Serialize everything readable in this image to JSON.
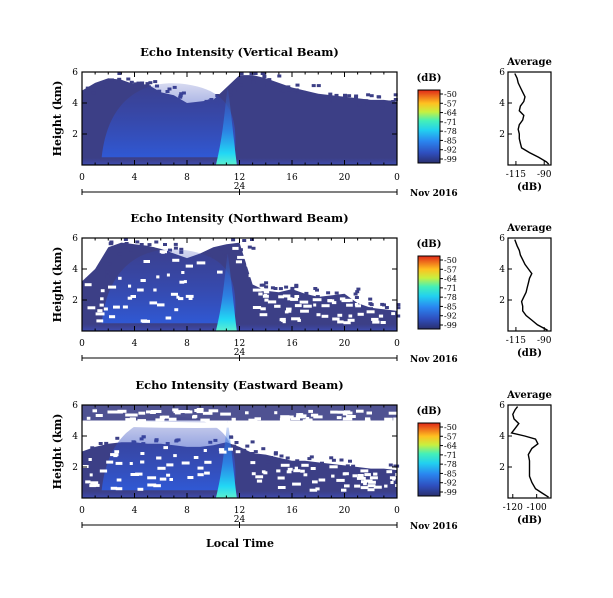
{
  "figure": {
    "xlabel": "Local Time",
    "date_label": "Nov 2016",
    "day_label": "24"
  },
  "chart_data": [
    {
      "type": "heatmap",
      "title": "Echo Intensity (Vertical Beam)",
      "ylabel": "Height (km)",
      "x_ticks": [
        "0",
        "4",
        "8",
        "12",
        "16",
        "20",
        "0"
      ],
      "y_ticks": [
        "2",
        "4",
        "6"
      ],
      "xlim": [
        0,
        24
      ],
      "ylim": [
        0,
        6
      ],
      "colorbar": {
        "unit": "(dB)",
        "ticks": [
          "-50",
          "-57",
          "-64",
          "-71",
          "-78",
          "-85",
          "-92",
          "-99"
        ]
      },
      "cloud_top_km": [
        4.8,
        5.3,
        5.6,
        5.5,
        5.2,
        5.2,
        4.7,
        4.5,
        4.0,
        4.1,
        4.2,
        5.0,
        5.8,
        5.8,
        5.6,
        5.3,
        5.0,
        4.8,
        4.6,
        4.5,
        4.4,
        4.3,
        4.2,
        4.2,
        4.1
      ],
      "average_profile": {
        "title": "Average",
        "xlabel": "(dB)",
        "x_ticks": [
          "-115",
          "-90"
        ],
        "y_ticks": [
          "2",
          "4",
          "6"
        ],
        "xlim": [
          -122,
          -84
        ],
        "points": [
          [
            -86,
            0.05
          ],
          [
            -88,
            0.2
          ],
          [
            -95,
            0.5
          ],
          [
            -103,
            0.8
          ],
          [
            -110,
            1.1
          ],
          [
            -111,
            1.4
          ],
          [
            -112,
            1.7
          ],
          [
            -112,
            2.0
          ],
          [
            -113,
            2.3
          ],
          [
            -112,
            2.6
          ],
          [
            -109,
            2.9
          ],
          [
            -108,
            3.2
          ],
          [
            -112,
            3.5
          ],
          [
            -111,
            3.8
          ],
          [
            -108,
            4.1
          ],
          [
            -107,
            4.4
          ],
          [
            -109,
            4.7
          ],
          [
            -111,
            5.0
          ],
          [
            -113,
            5.3
          ],
          [
            -114,
            5.6
          ],
          [
            -116,
            5.9
          ]
        ]
      }
    },
    {
      "type": "heatmap",
      "title": "Echo Intensity (Northward Beam)",
      "ylabel": "Height (km)",
      "x_ticks": [
        "0",
        "4",
        "8",
        "12",
        "16",
        "20",
        "0"
      ],
      "y_ticks": [
        "2",
        "4",
        "6"
      ],
      "xlim": [
        0,
        24
      ],
      "ylim": [
        0,
        6
      ],
      "colorbar": {
        "unit": "(dB)",
        "ticks": [
          "-50",
          "-57",
          "-64",
          "-71",
          "-78",
          "-85",
          "-92",
          "-99"
        ]
      },
      "cloud_top_km": [
        3.2,
        4.0,
        5.4,
        5.7,
        5.6,
        5.5,
        5.3,
        5.0,
        4.7,
        5.0,
        5.4,
        5.6,
        5.7,
        3.0,
        2.6,
        2.5,
        2.7,
        2.4,
        2.2,
        2.3,
        2.4,
        1.8,
        1.5,
        1.4,
        1.3
      ],
      "average_profile": {
        "title": "Average",
        "xlabel": "(dB)",
        "x_ticks": [
          "-115",
          "-90"
        ],
        "y_ticks": [
          "2",
          "4",
          "6"
        ],
        "xlim": [
          -122,
          -84
        ],
        "points": [
          [
            -87,
            0.05
          ],
          [
            -96,
            0.4
          ],
          [
            -101,
            0.7
          ],
          [
            -106,
            1.0
          ],
          [
            -109,
            1.3
          ],
          [
            -109,
            1.6
          ],
          [
            -110,
            1.9
          ],
          [
            -108,
            2.2
          ],
          [
            -106,
            2.5
          ],
          [
            -105,
            2.8
          ],
          [
            -104,
            3.1
          ],
          [
            -103,
            3.4
          ],
          [
            -101,
            3.7
          ],
          [
            -104,
            4.0
          ],
          [
            -107,
            4.3
          ],
          [
            -109,
            4.6
          ],
          [
            -111,
            4.9
          ],
          [
            -112,
            5.2
          ],
          [
            -114,
            5.5
          ],
          [
            -116,
            5.9
          ]
        ]
      }
    },
    {
      "type": "heatmap",
      "title": "Echo Intensity (Eastward Beam)",
      "ylabel": "Height (km)",
      "x_ticks": [
        "0",
        "4",
        "8",
        "12",
        "16",
        "20",
        "0"
      ],
      "y_ticks": [
        "2",
        "4",
        "6"
      ],
      "xlim": [
        0,
        24
      ],
      "ylim": [
        0,
        6
      ],
      "colorbar": {
        "unit": "(dB)",
        "ticks": [
          "-50",
          "-57",
          "-64",
          "-71",
          "-78",
          "-85",
          "-92",
          "-99"
        ]
      },
      "cloud_top_km": [
        3.0,
        3.3,
        3.5,
        3.6,
        3.6,
        3.5,
        3.5,
        3.4,
        3.3,
        3.3,
        3.4,
        3.6,
        3.3,
        2.9,
        2.8,
        2.6,
        2.4,
        2.4,
        2.3,
        2.2,
        2.1,
        2.0,
        1.9,
        1.9,
        1.8
      ],
      "average_profile": {
        "title": "Average",
        "xlabel": "(dB)",
        "x_ticks": [
          "-120",
          "-100"
        ],
        "y_ticks": [
          "2",
          "4",
          "6"
        ],
        "xlim": [
          -124,
          -88
        ],
        "points": [
          [
            -90,
            0.05
          ],
          [
            -95,
            0.3
          ],
          [
            -101,
            0.6
          ],
          [
            -104,
            1.0
          ],
          [
            -106,
            1.4
          ],
          [
            -106,
            1.9
          ],
          [
            -106,
            2.4
          ],
          [
            -107,
            2.8
          ],
          [
            -104,
            3.2
          ],
          [
            -99,
            3.5
          ],
          [
            -101,
            3.8
          ],
          [
            -110,
            4.0
          ],
          [
            -121,
            4.2
          ],
          [
            -118,
            4.5
          ],
          [
            -115,
            4.8
          ],
          [
            -119,
            5.1
          ],
          [
            -120,
            5.4
          ],
          [
            -118,
            5.7
          ],
          [
            -116,
            5.9
          ]
        ]
      }
    }
  ]
}
